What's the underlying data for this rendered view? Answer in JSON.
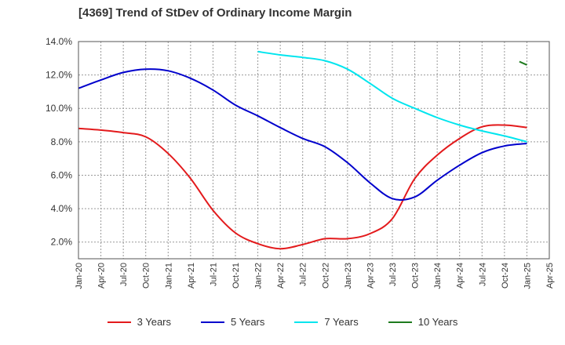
{
  "chart_data": {
    "type": "line",
    "title": "[4369]  Trend of StDev of Ordinary Income Margin",
    "xlabel": "",
    "ylabel": "",
    "x_ticks": [
      "Jan-20",
      "Apr-20",
      "Jul-20",
      "Oct-20",
      "Jan-21",
      "Apr-21",
      "Jul-21",
      "Oct-21",
      "Jan-22",
      "Apr-22",
      "Jul-22",
      "Oct-22",
      "Jan-23",
      "Apr-23",
      "Jul-23",
      "Oct-23",
      "Jan-24",
      "Apr-24",
      "Jul-24",
      "Oct-24",
      "Jan-25",
      "Apr-25"
    ],
    "y_ticks": [
      "2.0%",
      "4.0%",
      "6.0%",
      "8.0%",
      "10.0%",
      "12.0%",
      "14.0%"
    ],
    "ylim": [
      1.0,
      14.0
    ],
    "grid": true,
    "legend_position": "bottom",
    "series": [
      {
        "name": "3 Years",
        "color": "#e31a1c",
        "points": [
          [
            "Jan-20",
            8.8
          ],
          [
            "Apr-20",
            8.7
          ],
          [
            "Jul-20",
            8.55
          ],
          [
            "Oct-20",
            8.3
          ],
          [
            "Jan-21",
            7.3
          ],
          [
            "Apr-21",
            5.8
          ],
          [
            "Jul-21",
            3.9
          ],
          [
            "Oct-21",
            2.55
          ],
          [
            "Jan-22",
            1.9
          ],
          [
            "Apr-22",
            1.6
          ],
          [
            "Jul-22",
            1.85
          ],
          [
            "Oct-22",
            2.2
          ],
          [
            "Jan-23",
            2.2
          ],
          [
            "Apr-23",
            2.5
          ],
          [
            "Jul-23",
            3.4
          ],
          [
            "Oct-23",
            5.8
          ],
          [
            "Jan-24",
            7.2
          ],
          [
            "Apr-24",
            8.2
          ],
          [
            "Jul-24",
            8.9
          ],
          [
            "Oct-24",
            9.0
          ],
          [
            "Jan-25",
            8.85
          ]
        ]
      },
      {
        "name": "5 Years",
        "color": "#0000cc",
        "points": [
          [
            "Jan-20",
            11.2
          ],
          [
            "Apr-20",
            11.7
          ],
          [
            "Jul-20",
            12.15
          ],
          [
            "Oct-20",
            12.35
          ],
          [
            "Jan-21",
            12.25
          ],
          [
            "Apr-21",
            11.8
          ],
          [
            "Jul-21",
            11.1
          ],
          [
            "Oct-21",
            10.2
          ],
          [
            "Jan-22",
            9.55
          ],
          [
            "Apr-22",
            8.85
          ],
          [
            "Jul-22",
            8.2
          ],
          [
            "Oct-22",
            7.7
          ],
          [
            "Jan-23",
            6.75
          ],
          [
            "Apr-23",
            5.55
          ],
          [
            "Jul-23",
            4.6
          ],
          [
            "Oct-23",
            4.7
          ],
          [
            "Jan-24",
            5.7
          ],
          [
            "Apr-24",
            6.6
          ],
          [
            "Jul-24",
            7.35
          ],
          [
            "Oct-24",
            7.75
          ],
          [
            "Jan-25",
            7.9
          ]
        ]
      },
      {
        "name": "7 Years",
        "color": "#00e5ee",
        "points": [
          [
            "Jan-22",
            13.4
          ],
          [
            "Apr-22",
            13.2
          ],
          [
            "Jul-22",
            13.05
          ],
          [
            "Oct-22",
            12.85
          ],
          [
            "Jan-23",
            12.35
          ],
          [
            "Apr-23",
            11.5
          ],
          [
            "Jul-23",
            10.6
          ],
          [
            "Oct-23",
            10.0
          ],
          [
            "Jan-24",
            9.45
          ],
          [
            "Apr-24",
            9.0
          ],
          [
            "Jul-24",
            8.65
          ],
          [
            "Oct-24",
            8.35
          ],
          [
            "Jan-25",
            8.0
          ]
        ]
      },
      {
        "name": "10 Years",
        "color": "#1e7b1e",
        "points": [
          [
            "Dec-24",
            12.8
          ],
          [
            "Jan-25",
            12.6
          ]
        ]
      }
    ]
  }
}
